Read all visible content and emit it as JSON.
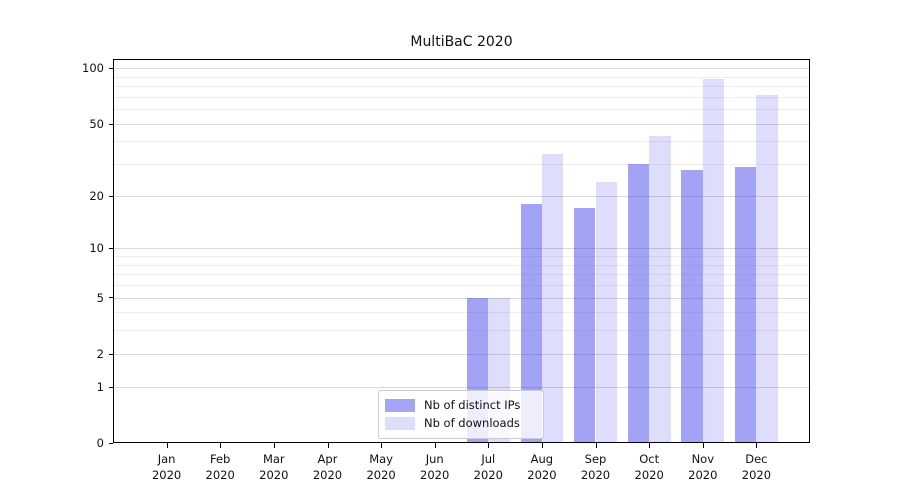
{
  "title": "MultiBaC 2020",
  "chart_data": {
    "type": "bar",
    "title": "MultiBaC 2020",
    "categories": [
      "Jan 2020",
      "Feb 2020",
      "Mar 2020",
      "Apr 2020",
      "May 2020",
      "Jun 2020",
      "Jul 2020",
      "Aug 2020",
      "Sep 2020",
      "Oct 2020",
      "Nov 2020",
      "Dec 2020"
    ],
    "series": [
      {
        "key": "distinct-ips",
        "name": "Nb of distinct IPs",
        "fill": "rgba(50,50,235,0.45)",
        "swatch": "#a4a4f4",
        "values": [
          0,
          0,
          0,
          0,
          0,
          0,
          5,
          18,
          17,
          30,
          28,
          29
        ]
      },
      {
        "key": "downloads",
        "name": "Nb of downloads",
        "fill": "rgba(50,50,235,0.16)",
        "swatch": "#dedefb",
        "values": [
          0,
          0,
          0,
          0,
          0,
          0,
          5,
          34,
          24,
          43,
          88,
          72
        ]
      }
    ],
    "y_scale": "log1p",
    "y_ticks": [
      0,
      1,
      2,
      5,
      10,
      20,
      50,
      100
    ],
    "y_minor_gridlines": [
      3,
      4,
      6,
      7,
      8,
      9,
      30,
      40,
      60,
      70,
      80,
      90
    ],
    "ylim": [
      0,
      112
    ],
    "xlabel": "",
    "ylabel": "",
    "grid": "horizontal",
    "legend_position": "lower center"
  },
  "colors": {
    "bar_distinct_ips": "#a4a4f4",
    "bar_downloads": "#dedefb",
    "gridline_major": "#d9d9d9",
    "gridline_minor": "#eeeeee",
    "axis": "#000000",
    "legend_border": "#cccccc",
    "background": "#ffffff"
  }
}
